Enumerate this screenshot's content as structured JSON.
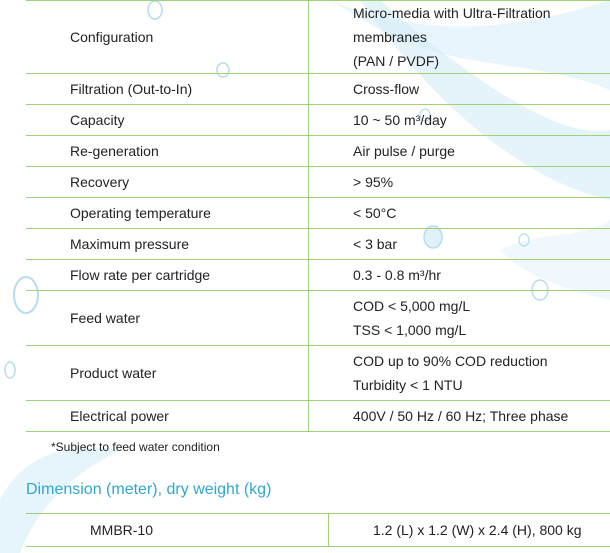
{
  "specs": [
    {
      "label": "Configuration",
      "lines": [
        "Micro-media with Ultra-Filtration membranes",
        "(PAN / PVDF)"
      ]
    },
    {
      "label": "Filtration (Out-to-In)",
      "lines": [
        "Cross-flow"
      ]
    },
    {
      "label": "Capacity",
      "lines": [
        "10 ~ 50 m³/day"
      ]
    },
    {
      "label": "Re-generation",
      "lines": [
        "Air pulse / purge"
      ]
    },
    {
      "label": "Recovery",
      "lines": [
        "> 95%"
      ]
    },
    {
      "label": "Operating temperature",
      "lines": [
        "< 50°C"
      ]
    },
    {
      "label": "Maximum pressure",
      "lines": [
        "< 3 bar"
      ]
    },
    {
      "label": "Flow rate per cartridge",
      "lines": [
        "0.3 - 0.8 m³/hr"
      ]
    },
    {
      "label": "Feed water",
      "lines": [
        "COD < 5,000 mg/L",
        "TSS < 1,000 mg/L"
      ]
    },
    {
      "label": "Product water",
      "lines": [
        "COD up to 90% COD reduction",
        "Turbidity < 1 NTU"
      ]
    },
    {
      "label": "Electrical power",
      "lines": [
        "400V / 50 Hz / 60 Hz; Three phase"
      ]
    }
  ],
  "note": "*Subject to feed water condition",
  "section_title": "Dimension (meter), dry weight (kg)",
  "dimension": {
    "model": "MMBR-10",
    "value": "1.2 (L) x 1.2 (W) x 2.4 (H), 800 kg"
  },
  "colors": {
    "rule": "#9fd07a",
    "section_title": "#2fa7cf",
    "watermark": "#cfe9f6"
  }
}
